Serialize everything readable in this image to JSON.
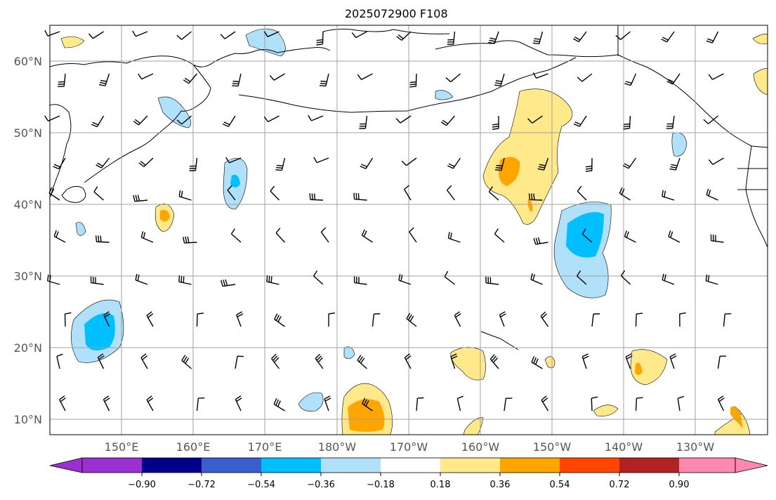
{
  "title": "2025072900 F108",
  "lat_labels": [
    "60°N",
    "50°N",
    "40°N",
    "30°N",
    "20°N",
    "10°N"
  ],
  "lon_labels": [
    "150°E",
    "160°E",
    "170°E",
    "180°W",
    "170°W",
    "160°W",
    "150°W",
    "140°W",
    "130°W"
  ],
  "colorbar": {
    "ticks": [
      "−0.90",
      "−0.72",
      "−0.54",
      "−0.36",
      "−0.18",
      "0.18",
      "0.36",
      "0.54",
      "0.72",
      "0.90"
    ],
    "colors": [
      "#9b30d0",
      "#00008b",
      "#3a5fcd",
      "#00bfff",
      "#b0e0fa",
      "#ffffff",
      "#ffe98a",
      "#ffa500",
      "#ff4500",
      "#b22222",
      "#ff88b0"
    ]
  },
  "colors": {
    "coast": "#000000",
    "grid": "#a0a0a0",
    "pos1": "#ffe98a",
    "pos2": "#ffa500",
    "neg1": "#b0e0fa",
    "neg2": "#00bfff"
  }
}
